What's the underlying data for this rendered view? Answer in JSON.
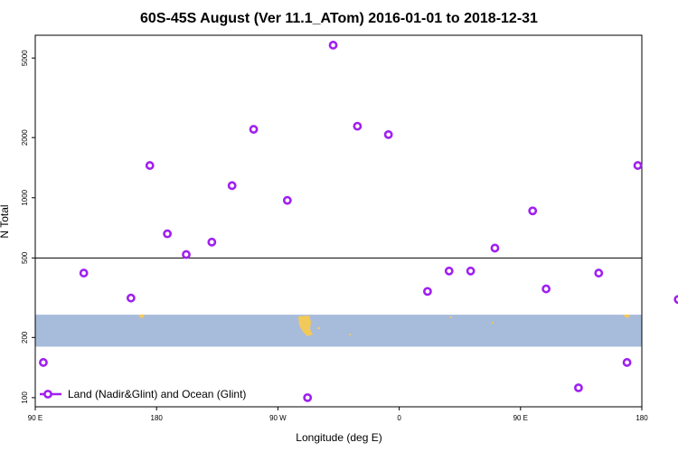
{
  "colors": {
    "series": "#a020f0",
    "band": "#a7bbdb",
    "land": "#f3c95a"
  },
  "chart_data": {
    "type": "scatter",
    "title": "60S-45S August (Ver 11.1_ATom)   2016-01-01 to 2018-12-31",
    "xlabel": "Longitude (deg E)",
    "ylabel": "N Total",
    "y_scale": "log",
    "ylim": [
      90,
      6500
    ],
    "x_ticks": [
      {
        "value": 90,
        "label": "90 E"
      },
      {
        "value": 180,
        "label": "180"
      },
      {
        "value": 270,
        "label": "90 W"
      },
      {
        "value": 360,
        "label": "0"
      },
      {
        "value": 450,
        "label": "90 E"
      },
      {
        "value": 540,
        "label": "180"
      }
    ],
    "y_ticks": [
      {
        "value": 100,
        "label": "100"
      },
      {
        "value": 200,
        "label": "200"
      },
      {
        "value": 500,
        "label": "500"
      },
      {
        "value": 1000,
        "label": "1000"
      },
      {
        "value": 2000,
        "label": "2000"
      },
      {
        "value": 5000,
        "label": "5000"
      }
    ],
    "reference_line": 500,
    "latitude_band": [
      180,
      260
    ],
    "legend": {
      "label": "Land (Nadir&Glint) and Ocean (Glint)",
      "position": "bottom-left"
    },
    "series": [
      {
        "name": "Land (Nadir&Glint) and Ocean (Glint)",
        "x": [
          96,
          126,
          161,
          175,
          188,
          202,
          221,
          236,
          252,
          277,
          292,
          311,
          329,
          352,
          381,
          397,
          413,
          431,
          459,
          469,
          493,
          529
        ],
        "y": [
          150,
          420,
          315,
          1450,
          660,
          520,
          600,
          1150,
          2200,
          970,
          100,
          5800,
          2280,
          2070,
          340,
          430,
          430,
          560,
          860,
          350,
          112,
          150
        ]
      },
      {
        "x": [
          508,
          567,
          537
        ],
        "y": [
          420,
          310,
          1450
        ]
      }
    ]
  }
}
